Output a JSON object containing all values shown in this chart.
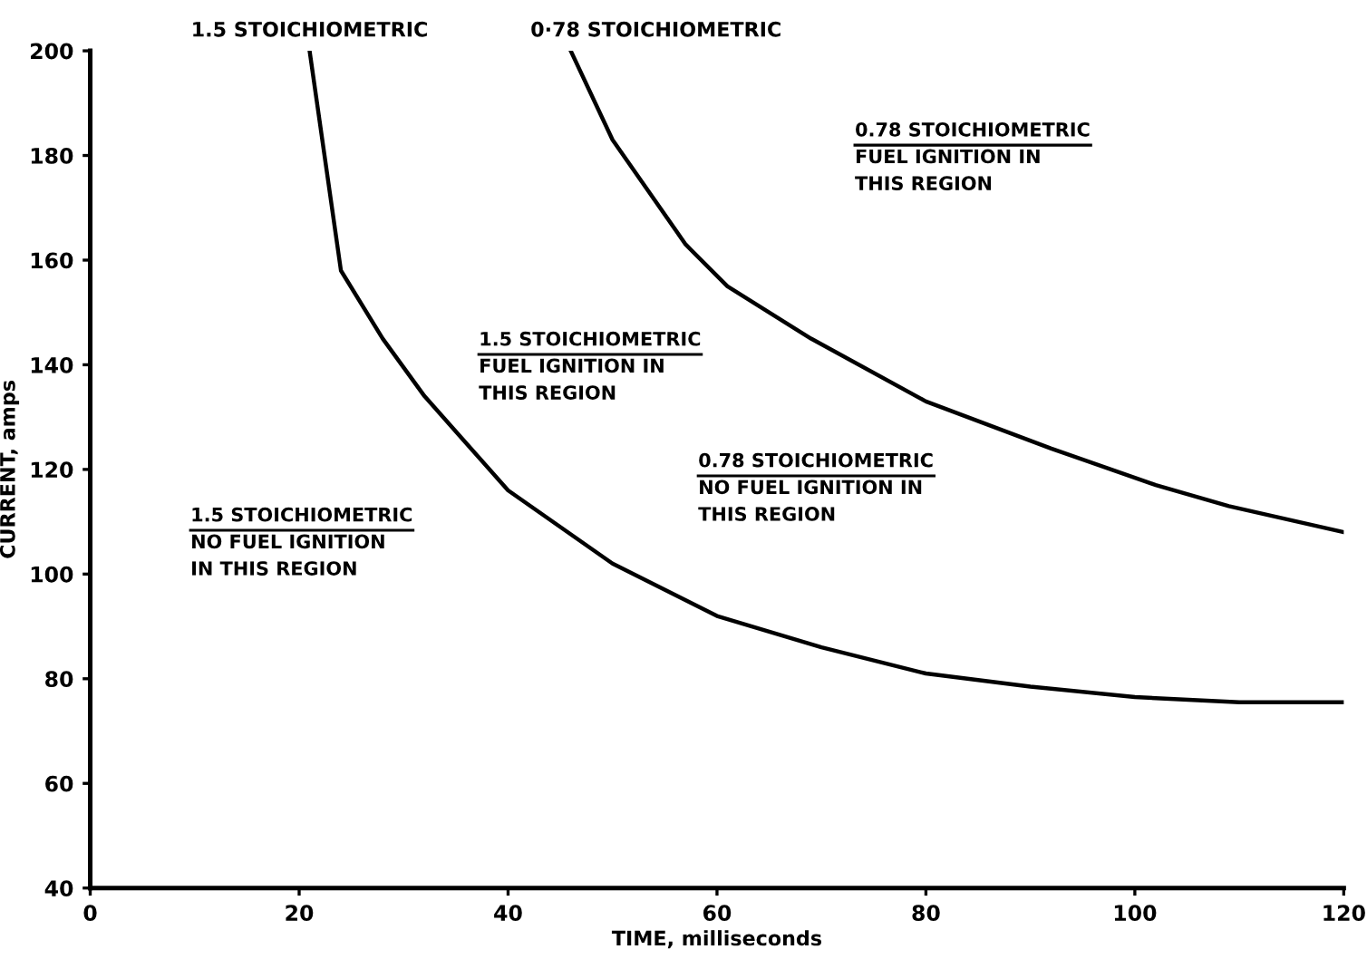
{
  "chart_data": {
    "type": "line",
    "xlabel": "TIME, milliseconds",
    "ylabel": "CURRENT, amps",
    "xlim": [
      0,
      120
    ],
    "xticks": [
      0,
      20,
      40,
      60,
      80,
      100,
      120
    ],
    "ylim": [
      40,
      200
    ],
    "yticks": [
      40,
      60,
      80,
      100,
      120,
      140,
      160,
      180,
      200
    ],
    "grid": false,
    "legend": false,
    "marker": "none",
    "line_style": "solid",
    "series": [
      {
        "name": "1.5 STOICHIOMETRIC",
        "color": "#000000",
        "x": [
          21,
          24,
          28,
          32,
          40,
          50,
          60,
          70,
          80,
          90,
          100,
          110,
          120
        ],
        "values": [
          200,
          158,
          145,
          134,
          116,
          102,
          92,
          86,
          81,
          78.5,
          76.5,
          75.5,
          75.5
        ]
      },
      {
        "name": "0·78 STOICHIOMETRIC",
        "color": "#000000",
        "x": [
          46,
          50,
          57,
          61,
          69,
          80,
          92,
          102,
          109,
          120
        ],
        "values": [
          200,
          183,
          163,
          155,
          145,
          133,
          124,
          117,
          113,
          108
        ]
      }
    ],
    "annotations": [
      "1.5 STOICHIOMETRIC\nNO FUEL IGNITION\nIN THIS REGION",
      "1.5 STOICHIOMETRIC\nFUEL IGNITION IN\nTHIS REGION",
      "0.78 STOICHIOMETRIC\nFUEL IGNITION IN\nTHIS REGION",
      "0.78 STOICHIOMETRIC\nNO FUEL IGNITION IN\nTHIS REGION"
    ]
  }
}
